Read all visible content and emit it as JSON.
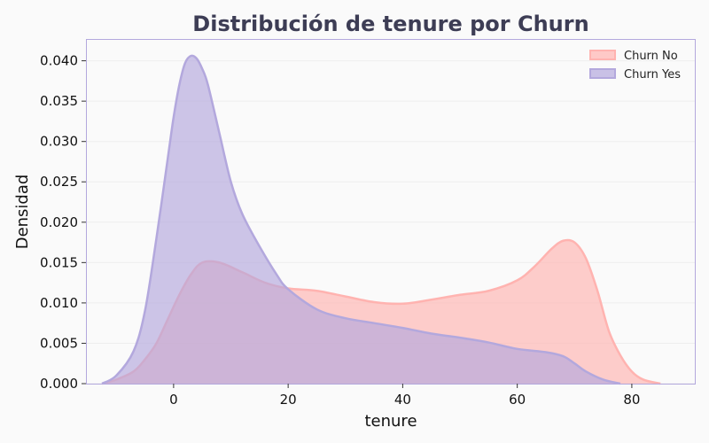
{
  "chart_data": {
    "type": "area",
    "title": "Distribución de tenure por Churn",
    "xlabel": "tenure",
    "ylabel": "Densidad",
    "xlim": [
      -15.3,
      91
    ],
    "ylim": [
      0,
      0.0427
    ],
    "xticks": [
      0,
      20,
      40,
      60,
      80
    ],
    "yticks": [
      0.0,
      0.005,
      0.01,
      0.015,
      0.02,
      0.025,
      0.03,
      0.035,
      0.04
    ],
    "ytick_labels": [
      "0.000",
      "0.005",
      "0.010",
      "0.015",
      "0.020",
      "0.025",
      "0.030",
      "0.035",
      "0.040"
    ],
    "grid": "y",
    "legend_position": "top-right",
    "series": [
      {
        "name": "Churn No",
        "color": "#ffb3b0",
        "x": [
          -12.5,
          -10,
          -7,
          -5,
          -3,
          -1,
          1,
          3,
          5,
          8,
          12,
          16,
          20,
          25,
          30,
          35,
          40,
          45,
          50,
          55,
          60,
          63,
          66,
          68,
          70,
          72,
          74,
          76,
          78,
          80,
          82,
          85
        ],
        "y": [
          0.0,
          0.0005,
          0.0015,
          0.003,
          0.005,
          0.008,
          0.011,
          0.0135,
          0.015,
          0.015,
          0.0138,
          0.0125,
          0.0118,
          0.0115,
          0.0108,
          0.0101,
          0.0099,
          0.0104,
          0.011,
          0.0115,
          0.0128,
          0.0145,
          0.0167,
          0.0177,
          0.0175,
          0.0155,
          0.0115,
          0.0065,
          0.0035,
          0.0015,
          0.0005,
          0.0
        ]
      },
      {
        "name": "Churn Yes",
        "color": "#b3a8dd",
        "x": [
          -12.5,
          -10,
          -7,
          -5,
          -3,
          -1,
          0,
          1,
          2,
          3,
          4,
          5,
          6,
          8,
          10,
          12,
          15,
          18,
          20,
          25,
          30,
          35,
          40,
          45,
          50,
          55,
          60,
          65,
          68,
          70,
          72,
          75,
          78
        ],
        "y": [
          0.0,
          0.001,
          0.004,
          0.009,
          0.018,
          0.028,
          0.033,
          0.037,
          0.0397,
          0.0406,
          0.0403,
          0.039,
          0.037,
          0.031,
          0.025,
          0.021,
          0.017,
          0.0135,
          0.0117,
          0.0092,
          0.0081,
          0.0075,
          0.0069,
          0.0062,
          0.0057,
          0.0051,
          0.0043,
          0.0039,
          0.0034,
          0.0025,
          0.0015,
          0.0005,
          0.0
        ]
      }
    ]
  }
}
